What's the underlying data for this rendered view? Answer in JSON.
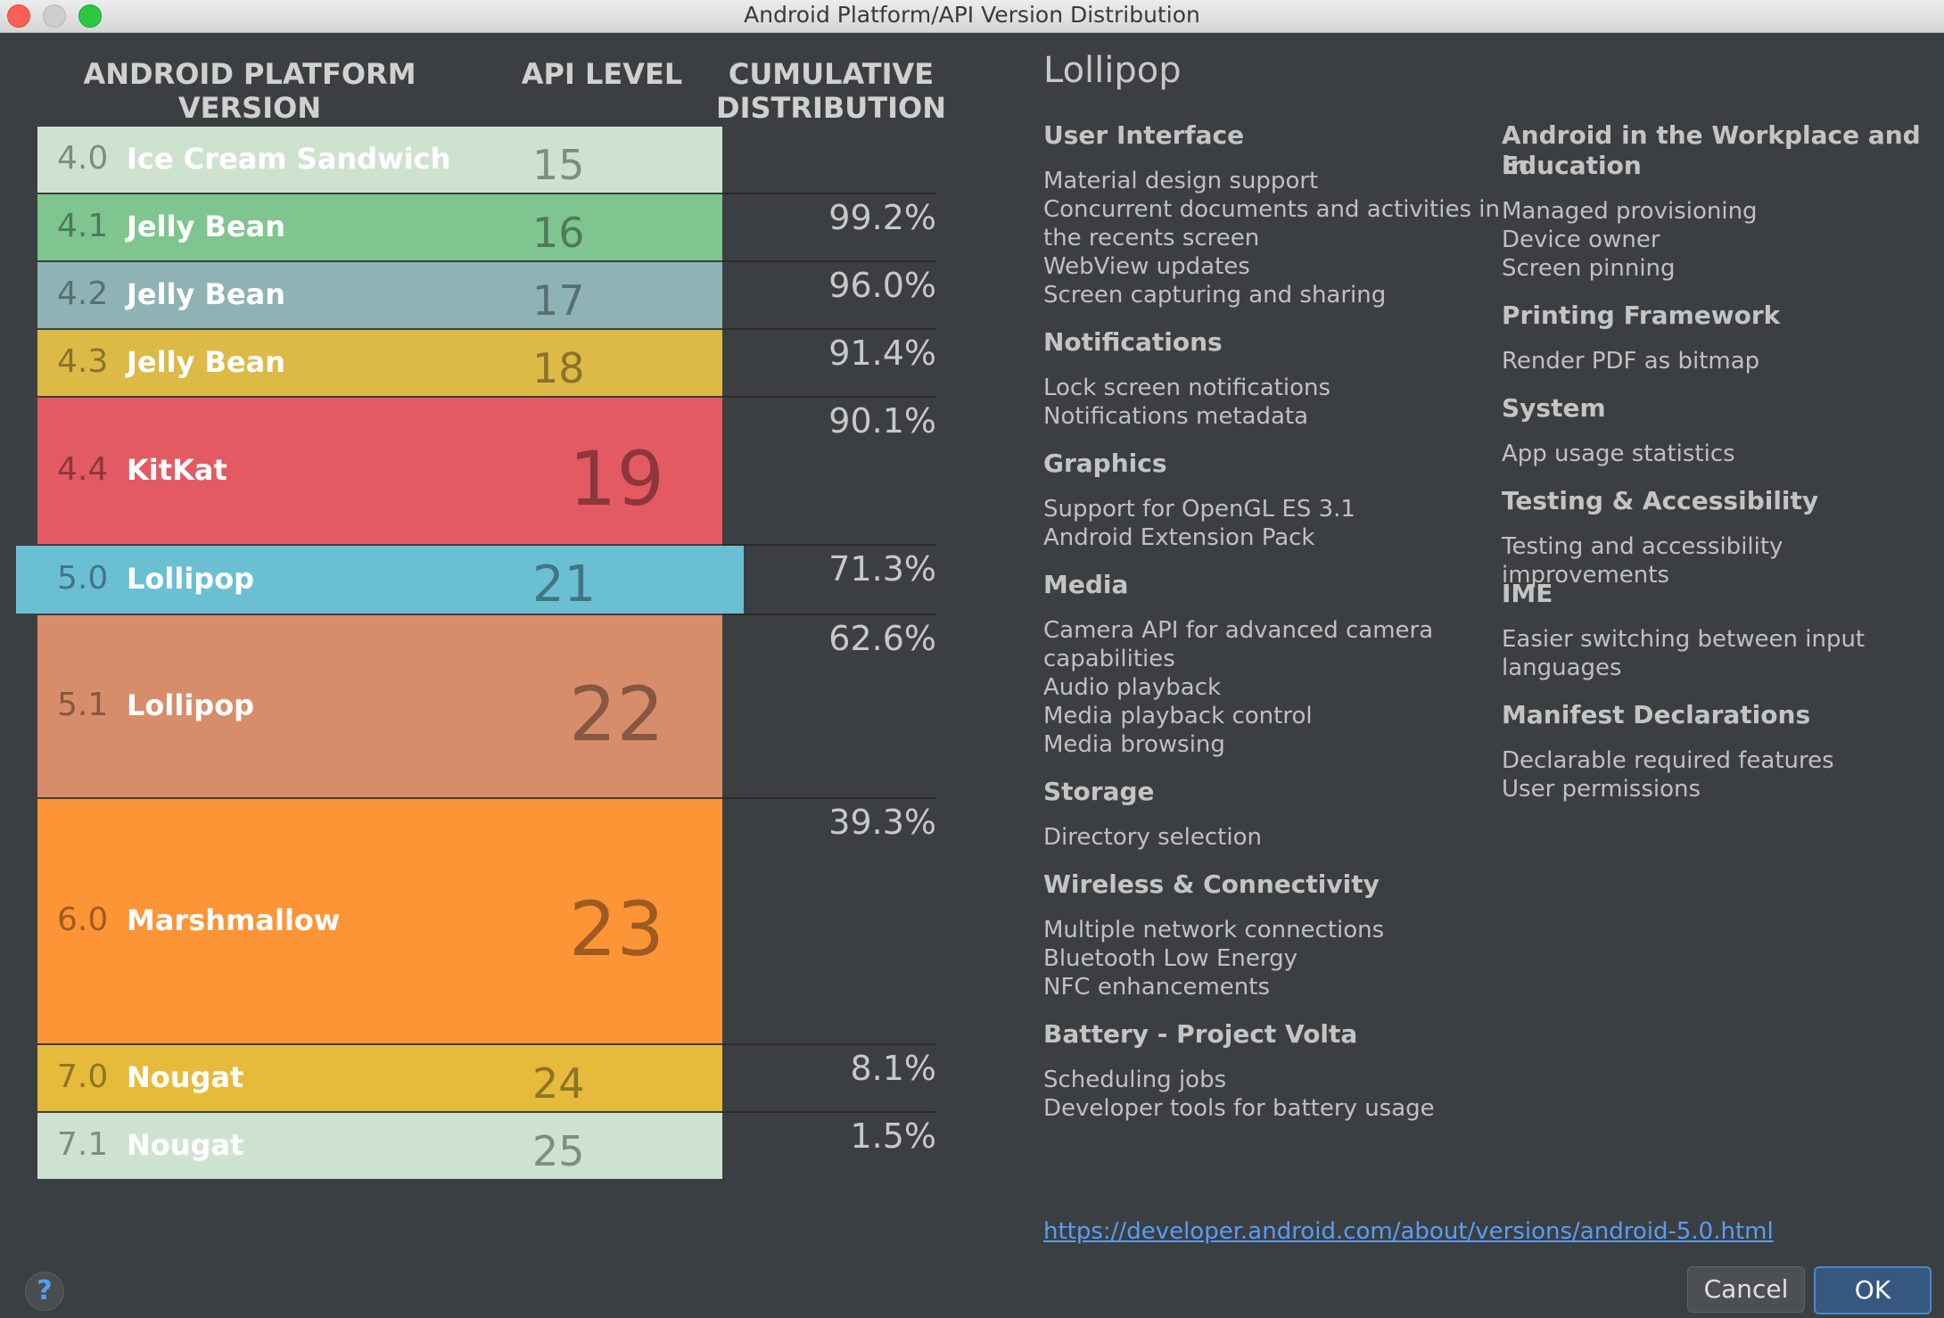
{
  "window": {
    "title": "Android Platform/API Version Distribution"
  },
  "headers": {
    "platform": [
      "ANDROID PLATFORM",
      "VERSION"
    ],
    "api": "API LEVEL",
    "cumulative": [
      "CUMULATIVE",
      "DISTRIBUTION"
    ]
  },
  "versions": [
    {
      "ver": "4.0",
      "name": "Ice Cream Sandwich",
      "api": "15",
      "color": "#cde3cf",
      "cum": ""
    },
    {
      "ver": "4.1",
      "name": "Jelly Bean",
      "api": "16",
      "color": "#7fc58f",
      "cum": "99.2%"
    },
    {
      "ver": "4.2",
      "name": "Jelly Bean",
      "api": "17",
      "color": "#8fb3b5",
      "cum": "96.0%"
    },
    {
      "ver": "4.3",
      "name": "Jelly Bean",
      "api": "18",
      "color": "#ddb946",
      "cum": "91.4%"
    },
    {
      "ver": "4.4",
      "name": "KitKat",
      "api": "19",
      "color": "#e35a63",
      "cum": "90.1%"
    },
    {
      "ver": "5.0",
      "name": "Lollipop",
      "api": "21",
      "color": "#6bbfd3",
      "cum": "71.3%"
    },
    {
      "ver": "5.1",
      "name": "Lollipop",
      "api": "22",
      "color": "#d88d6a",
      "cum": "62.6%"
    },
    {
      "ver": "6.0",
      "name": "Marshmallow",
      "api": "23",
      "color": "#fd9436",
      "cum": "39.3%"
    },
    {
      "ver": "7.0",
      "name": "Nougat",
      "api": "24",
      "color": "#e6bb3b",
      "cum": "8.1%"
    },
    {
      "ver": "7.1",
      "name": "Nougat",
      "api": "25",
      "color": "#cde3cf",
      "cum": "1.5%"
    }
  ],
  "selected_version": "5.0",
  "details": {
    "title": "Lollipop",
    "left_sections": [
      {
        "heading": "User Interface",
        "items": [
          "Material design support",
          "Concurrent documents and activities in",
          "the recents screen",
          "WebView updates",
          "Screen capturing and sharing"
        ]
      },
      {
        "heading": "Notifications",
        "items": [
          "Lock screen notifications",
          "Notifications metadata"
        ]
      },
      {
        "heading": "Graphics",
        "items": [
          "Support for OpenGL ES 3.1",
          "Android Extension Pack"
        ]
      },
      {
        "heading": "Media",
        "items": [
          "Camera API for advanced camera",
          "capabilities",
          "Audio playback",
          "Media playback control",
          "Media browsing"
        ]
      },
      {
        "heading": "Storage",
        "items": [
          "Directory selection"
        ]
      },
      {
        "heading": "Wireless & Connectivity",
        "items": [
          "Multiple network connections",
          "Bluetooth Low Energy",
          "NFC enhancements"
        ]
      },
      {
        "heading": "Battery - Project Volta",
        "items": [
          "Scheduling jobs",
          "Developer tools for battery usage"
        ]
      }
    ],
    "right_sections": [
      {
        "heading": [
          "Android in the Workplace and in",
          "Education"
        ],
        "items": [
          "Managed provisioning",
          "Device owner",
          "Screen pinning"
        ]
      },
      {
        "heading": [
          "Printing Framework"
        ],
        "items": [
          "Render PDF as bitmap"
        ]
      },
      {
        "heading": [
          "System"
        ],
        "items": [
          "App usage statistics"
        ]
      },
      {
        "heading": [
          "Testing & Accessibility"
        ],
        "items": [
          "Testing and accessibility improvements"
        ]
      },
      {
        "heading": [
          "IME"
        ],
        "items": [
          "Easier switching between input",
          "languages"
        ]
      },
      {
        "heading": [
          "Manifest Declarations"
        ],
        "items": [
          "Declarable required features",
          "User permissions"
        ]
      }
    ],
    "link": "https://developer.android.com/about/versions/android-5.0.html"
  },
  "buttons": {
    "help": "?",
    "cancel": "Cancel",
    "ok": "OK"
  }
}
